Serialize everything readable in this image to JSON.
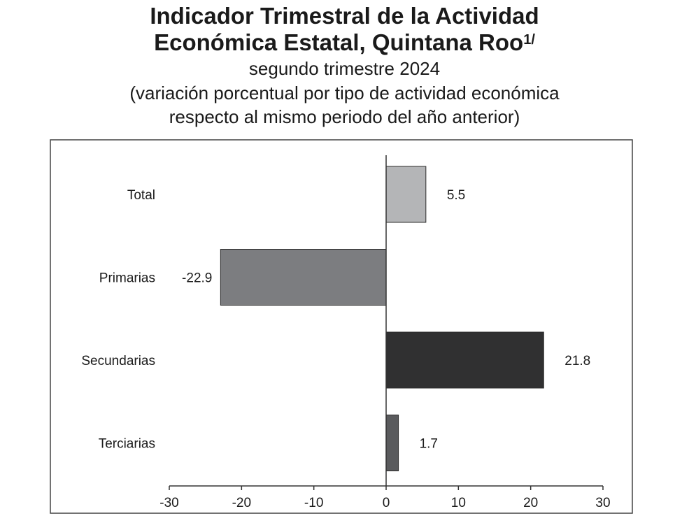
{
  "title": {
    "line1": "Indicador Trimestral de la Actividad",
    "line2": "Económica Estatal, Quintana Roo",
    "footnote_mark": "1/",
    "subtitle": "segundo trimestre 2024",
    "note_line1": "(variación porcentual por tipo de actividad económica",
    "note_line2": "respecto al mismo periodo del año anterior)"
  },
  "chart_data": {
    "type": "bar",
    "orientation": "horizontal",
    "categories": [
      "Total",
      "Primarias",
      "Secundarias",
      "Terciarias"
    ],
    "values": [
      5.5,
      -22.9,
      21.8,
      1.7
    ],
    "value_labels": [
      "5.5",
      "-22.9",
      "21.8",
      "1.7"
    ],
    "bar_colors": [
      "#b4b5b7",
      "#7c7d80",
      "#303031",
      "#5a5b5d"
    ],
    "xlim": [
      -30,
      30
    ],
    "xticks": [
      -30,
      -20,
      -10,
      0,
      10,
      20,
      30
    ],
    "xtick_labels": [
      "-30",
      "-20",
      "-10",
      "0",
      "10",
      "20",
      "30"
    ],
    "title": "Indicador Trimestral de la Actividad Económica Estatal, Quintana Roo",
    "xlabel": "",
    "ylabel": "",
    "grid": false,
    "legend": "none"
  }
}
